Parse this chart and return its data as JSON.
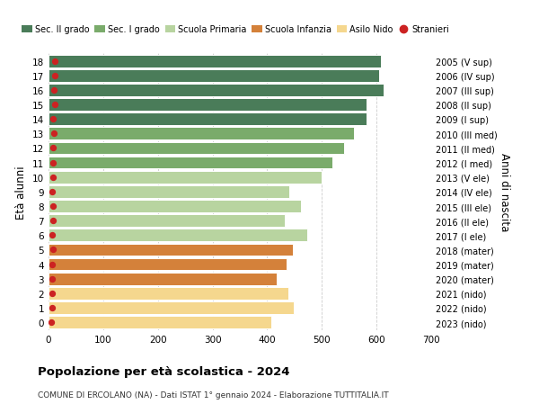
{
  "ages": [
    18,
    17,
    16,
    15,
    14,
    13,
    12,
    11,
    10,
    9,
    8,
    7,
    6,
    5,
    4,
    3,
    2,
    1,
    0
  ],
  "right_labels": [
    "2005 (V sup)",
    "2006 (IV sup)",
    "2007 (III sup)",
    "2008 (II sup)",
    "2009 (I sup)",
    "2010 (III med)",
    "2011 (II med)",
    "2012 (I med)",
    "2013 (V ele)",
    "2014 (IV ele)",
    "2015 (III ele)",
    "2016 (II ele)",
    "2017 (I ele)",
    "2018 (mater)",
    "2019 (mater)",
    "2020 (mater)",
    "2021 (nido)",
    "2022 (nido)",
    "2023 (nido)"
  ],
  "values": [
    608,
    605,
    613,
    581,
    582,
    558,
    540,
    519,
    499,
    441,
    461,
    432,
    474,
    447,
    435,
    418,
    438,
    448,
    407
  ],
  "stranieri": [
    12,
    11,
    10,
    12,
    9,
    10,
    9,
    9,
    8,
    7,
    8,
    8,
    7,
    8,
    7,
    7,
    6,
    6,
    5
  ],
  "bar_colors": [
    "#4a7c59",
    "#4a7c59",
    "#4a7c59",
    "#4a7c59",
    "#4a7c59",
    "#7aab6b",
    "#7aab6b",
    "#7aab6b",
    "#b8d4a0",
    "#b8d4a0",
    "#b8d4a0",
    "#b8d4a0",
    "#b8d4a0",
    "#d4813a",
    "#d4813a",
    "#d4813a",
    "#f5d78e",
    "#f5d78e",
    "#f5d78e"
  ],
  "legend_items": [
    "Sec. II grado",
    "Sec. I grado",
    "Scuola Primaria",
    "Scuola Infanzia",
    "Asilo Nido",
    "Stranieri"
  ],
  "legend_colors": [
    "#4a7c59",
    "#7aab6b",
    "#b8d4a0",
    "#d4813a",
    "#f5d78e",
    "#cc2222"
  ],
  "ylabel": "Età alunni",
  "right_ylabel": "Anni di nascita",
  "title": "Popolazione per età scolastica - 2024",
  "subtitle": "COMUNE DI ERCOLANO (NA) - Dati ISTAT 1° gennaio 2024 - Elaborazione TUTTITALIA.IT",
  "xlim": [
    0,
    700
  ],
  "xticks": [
    0,
    100,
    200,
    300,
    400,
    500,
    600,
    700
  ],
  "background_color": "#ffffff",
  "grid_color": "#cccccc",
  "bar_height": 0.85,
  "stranieri_dot_color": "#cc2222",
  "stranieri_dot_size": 18
}
